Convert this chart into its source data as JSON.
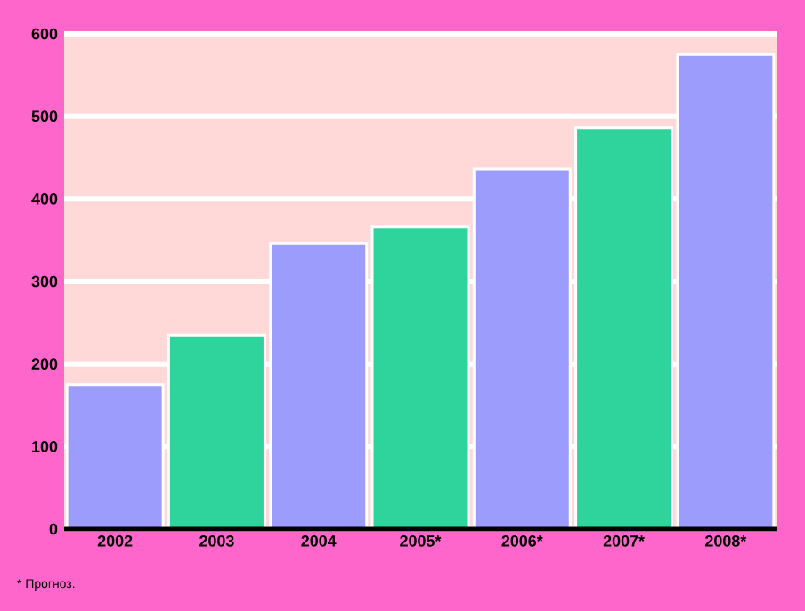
{
  "chart_data": {
    "type": "bar",
    "categories": [
      "2002",
      "2003",
      "2004",
      "2005*",
      "2006*",
      "2007*",
      "2008*"
    ],
    "values": [
      175,
      235,
      346,
      366,
      436,
      486,
      575
    ],
    "colors": [
      "#9c9cfc",
      "#2ed49c",
      "#9c9cfc",
      "#2ed49c",
      "#9c9cfc",
      "#2ed49c",
      "#9c9cfc"
    ],
    "ylim": [
      0,
      600
    ],
    "yticks": [
      0,
      100,
      200,
      300,
      400,
      500,
      600
    ],
    "grid": "y",
    "annotations": [
      "* Прогноз."
    ]
  }
}
